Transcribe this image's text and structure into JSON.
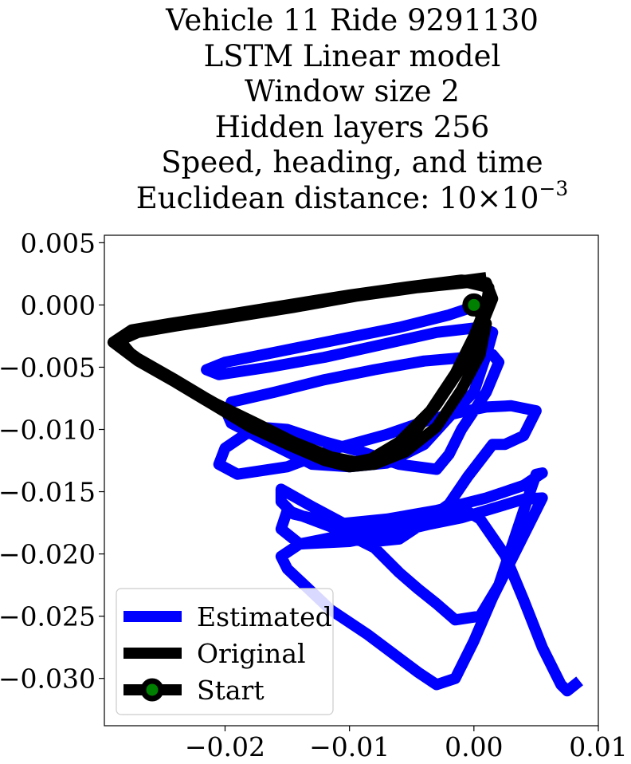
{
  "chart_data": {
    "type": "line",
    "title_lines": [
      "Vehicle 11 Ride 9291130",
      "LSTM Linear model",
      "Window size 2",
      "Hidden layers 256",
      "Speed, heading, and time"
    ],
    "distance_label": "Euclidean distance: 10×10",
    "distance_exponent": "−3",
    "xlabel": "",
    "ylabel": "",
    "xlim": [
      -0.0297,
      0.01
    ],
    "ylim": [
      -0.0338,
      0.0056
    ],
    "xticks": [
      -0.02,
      -0.01,
      0.0,
      0.01
    ],
    "xtick_labels": [
      "−0.02",
      "−0.01",
      "0.00",
      "0.01"
    ],
    "yticks": [
      0.005,
      0.0,
      -0.005,
      -0.01,
      -0.015,
      -0.02,
      -0.025,
      -0.03
    ],
    "ytick_labels": [
      "0.005",
      "0.000",
      "−0.005",
      "−0.010",
      "−0.015",
      "−0.020",
      "−0.025",
      "−0.030"
    ],
    "grid": false,
    "legend_position": "bottom-left",
    "series": [
      {
        "name": "Estimated",
        "color": "#0000ff",
        "x": [
          0.0,
          0.0001,
          -0.002,
          -0.006,
          -0.011,
          -0.016,
          -0.02,
          -0.0215,
          -0.0205,
          -0.0165,
          -0.012,
          -0.0075,
          -0.003,
          0.0005,
          0.0015,
          0.001,
          0.0,
          -0.002,
          -0.004,
          -0.007,
          -0.01,
          -0.013,
          -0.017,
          -0.0195,
          -0.0198,
          -0.0195,
          -0.016,
          -0.012,
          -0.008,
          -0.004,
          -0.0005,
          0.0015,
          0.002,
          0.001,
          -0.001,
          -0.002,
          -0.003,
          -0.006,
          -0.009,
          -0.012,
          -0.015,
          -0.0175,
          -0.02,
          -0.0205,
          -0.019,
          -0.015,
          -0.011,
          -0.007,
          -0.0035,
          -0.001,
          0.001,
          0.003,
          0.005,
          0.004,
          0.0025,
          0.0015,
          -0.0005,
          -0.002,
          -0.0045,
          -0.006,
          -0.008,
          -0.01,
          -0.013,
          -0.0155,
          -0.0155,
          -0.0145,
          -0.011,
          -0.007,
          -0.003,
          0.001,
          0.004,
          0.0055,
          0.005,
          0.004,
          0.003,
          0.002,
          0.0005,
          -0.0015,
          -0.003,
          -0.0045,
          -0.006,
          -0.008,
          -0.011,
          -0.015,
          -0.0155,
          -0.014,
          -0.01,
          -0.0065,
          -0.0035,
          -0.001,
          0.002,
          0.004,
          0.0055,
          0.0045,
          0.003,
          0.0015,
          0.0,
          -0.0015,
          -0.003,
          -0.0045,
          -0.0065,
          -0.0085,
          -0.0115,
          -0.015,
          -0.0155,
          -0.014,
          -0.011,
          -0.008,
          -0.005,
          -0.0025,
          -0.0005,
          0.0005,
          0.0025,
          0.004,
          0.0055,
          0.007,
          0.0075,
          0.0085
        ],
        "y": [
          0.0,
          -0.0001,
          -0.0008,
          -0.0018,
          -0.0028,
          -0.0038,
          -0.0046,
          -0.0052,
          -0.0056,
          -0.005,
          -0.0042,
          -0.0032,
          -0.0022,
          -0.0018,
          -0.0022,
          -0.004,
          -0.007,
          -0.009,
          -0.0112,
          -0.0127,
          -0.013,
          -0.0128,
          -0.0108,
          -0.0095,
          -0.0088,
          -0.0078,
          -0.007,
          -0.006,
          -0.0052,
          -0.0045,
          -0.0042,
          -0.004,
          -0.0046,
          -0.007,
          -0.01,
          -0.012,
          -0.0132,
          -0.0128,
          -0.0118,
          -0.011,
          -0.01,
          -0.0098,
          -0.0115,
          -0.0128,
          -0.0136,
          -0.013,
          -0.0115,
          -0.0104,
          -0.0092,
          -0.0086,
          -0.0082,
          -0.0081,
          -0.0085,
          -0.0105,
          -0.0112,
          -0.0112,
          -0.0138,
          -0.016,
          -0.0178,
          -0.0188,
          -0.019,
          -0.0178,
          -0.0162,
          -0.0148,
          -0.0158,
          -0.0168,
          -0.0176,
          -0.0172,
          -0.0165,
          -0.0155,
          -0.0145,
          -0.0135,
          -0.0136,
          -0.0165,
          -0.0195,
          -0.0225,
          -0.025,
          -0.0253,
          -0.024,
          -0.0228,
          -0.0215,
          -0.0195,
          -0.018,
          -0.0165,
          -0.018,
          -0.0192,
          -0.019,
          -0.0183,
          -0.0176,
          -0.0171,
          -0.0162,
          -0.0156,
          -0.0155,
          -0.0175,
          -0.0205,
          -0.0235,
          -0.027,
          -0.03,
          -0.0305,
          -0.0295,
          -0.028,
          -0.0265,
          -0.0245,
          -0.0212,
          -0.0202,
          -0.0192,
          -0.0186,
          -0.0178,
          -0.0172,
          -0.0168,
          -0.0166,
          -0.0172,
          -0.0201,
          -0.0237,
          -0.0275,
          -0.0305,
          -0.031,
          -0.0302
        ]
      },
      {
        "name": "Original",
        "color": "#000000",
        "x": [
          0.0,
          0.001,
          0.0005,
          -0.001,
          -0.003,
          -0.0055,
          -0.008,
          -0.01,
          -0.012,
          -0.015,
          -0.018,
          -0.021,
          -0.024,
          -0.027,
          -0.029,
          -0.0275,
          -0.0245,
          -0.02,
          -0.015,
          -0.01,
          -0.005,
          -0.001,
          0.001,
          0.0015,
          0.0005,
          -0.001,
          -0.003,
          -0.005,
          -0.0075,
          -0.0095,
          -0.0115,
          -0.0145,
          -0.0175,
          -0.021,
          -0.024,
          -0.027,
          -0.0288,
          -0.027,
          -0.024,
          -0.0195,
          -0.0145,
          -0.0095,
          -0.0045,
          -0.0005,
          0.0012,
          0.001,
          0.0,
          -0.0015,
          -0.0035,
          -0.006,
          -0.0085,
          -0.0105,
          -0.0125,
          -0.0155,
          -0.0185,
          -0.0215,
          -0.0245,
          -0.0275,
          -0.0285,
          -0.0265,
          -0.0235,
          -0.0185,
          -0.0135,
          -0.0085,
          -0.0035,
          0.001
        ],
        "y": [
          0.0,
          -0.0015,
          -0.004,
          -0.0068,
          -0.0098,
          -0.0118,
          -0.0128,
          -0.013,
          -0.0125,
          -0.0112,
          -0.0098,
          -0.008,
          -0.0062,
          -0.0045,
          -0.003,
          -0.002,
          -0.0015,
          -0.0008,
          0.0,
          0.0008,
          0.0015,
          0.002,
          0.0018,
          0.0005,
          -0.002,
          -0.005,
          -0.008,
          -0.0105,
          -0.0122,
          -0.0126,
          -0.0122,
          -0.011,
          -0.0095,
          -0.0078,
          -0.006,
          -0.0043,
          -0.003,
          -0.0022,
          -0.0017,
          -0.001,
          -0.0002,
          0.0007,
          0.0014,
          0.0018,
          0.0014,
          0.0,
          -0.0025,
          -0.0055,
          -0.0085,
          -0.011,
          -0.0125,
          -0.0128,
          -0.012,
          -0.0108,
          -0.0092,
          -0.0075,
          -0.0058,
          -0.004,
          -0.0028,
          -0.002,
          -0.0014,
          -0.0006,
          0.0002,
          0.001,
          0.0016,
          0.0022
        ]
      }
    ],
    "start_point": {
      "name": "Start",
      "x": 0.0,
      "y": 0.0,
      "color": "#008000",
      "edge_color": "#000000"
    }
  }
}
